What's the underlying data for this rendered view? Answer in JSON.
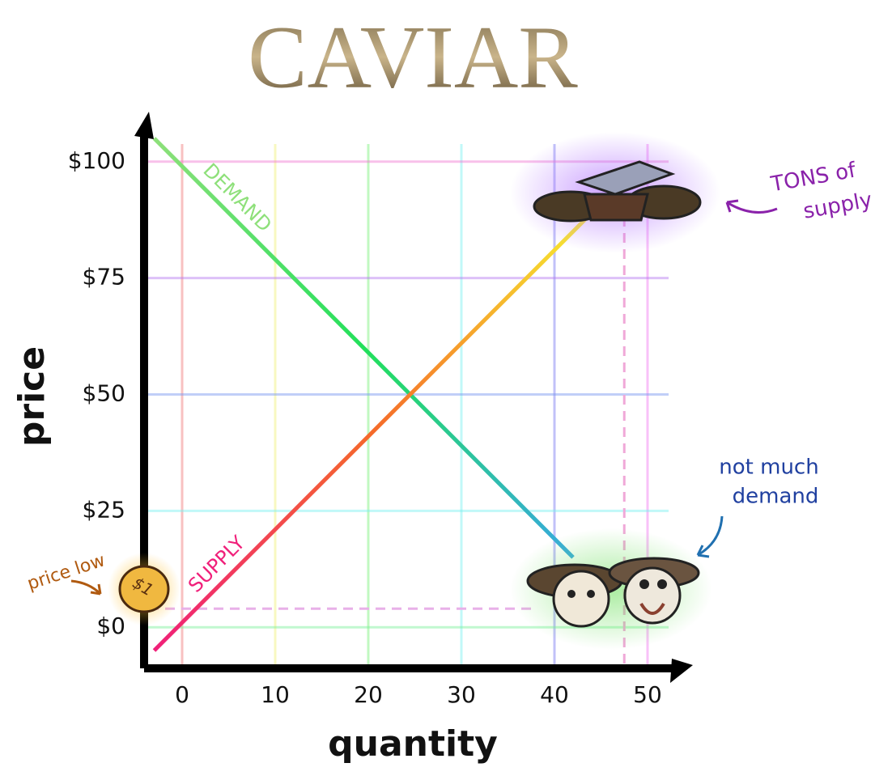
{
  "chart_data": {
    "type": "line",
    "title": "CAVIAR",
    "y_label": "price",
    "x_label": "quantity",
    "xlim": [
      -4,
      54
    ],
    "ylim": [
      -9,
      109
    ],
    "xticks": [
      0,
      10,
      20,
      30,
      40,
      50
    ],
    "yticks": [
      {
        "value": 0,
        "label": "$0"
      },
      {
        "value": 25,
        "label": "$25"
      },
      {
        "value": 50,
        "label": "$50"
      },
      {
        "value": 75,
        "label": "$75"
      },
      {
        "value": 100,
        "label": "$100"
      }
    ],
    "grid": true,
    "series": [
      {
        "name": "DEMAND",
        "color": [
          "#8ee07a",
          "#22e05a",
          "#38a8e0"
        ],
        "x": [
          -3,
          42
        ],
        "values": [
          105,
          15
        ]
      },
      {
        "name": "SUPPLY",
        "color": [
          "#f0207a",
          "#f56a2a",
          "#f7f030"
        ],
        "x": [
          -3,
          44
        ],
        "values": [
          -5,
          89
        ]
      }
    ],
    "reference_lines": {
      "x": 47.5,
      "y": 4
    },
    "annotations": {
      "supply_note": [
        "TONS of",
        "supply"
      ],
      "demand_note": [
        "not much",
        "demand"
      ],
      "price_note": "price low",
      "coin": "$1"
    }
  }
}
